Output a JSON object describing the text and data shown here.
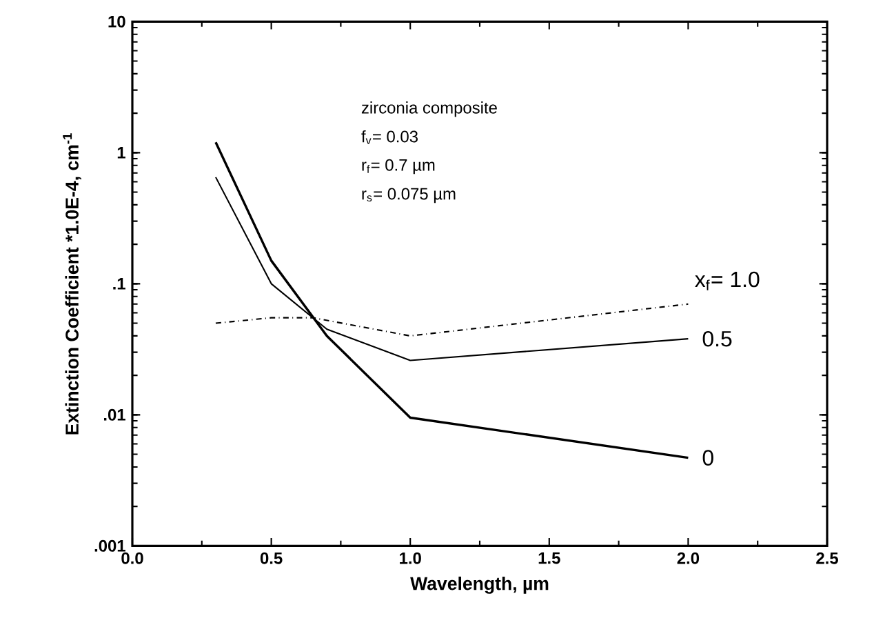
{
  "chart_data": {
    "type": "line",
    "xlabel": "Wavelength, µm",
    "ylabel": "Extinction  Coefficient  *1.0E-4,  cm$^{-1}$",
    "log": "y",
    "xlim": [
      0,
      2.5
    ],
    "ylim": [
      0.001,
      10
    ],
    "xticks": [
      {
        "value": 0,
        "label": "0.0"
      },
      0.5,
      {
        "value": 1,
        "label": "1.0"
      },
      1.5,
      {
        "value": 2,
        "label": "2.0"
      },
      2.5
    ],
    "yticks": [
      {
        "value": 0.001,
        "label": ".001"
      },
      {
        "value": 0.01,
        "label": ".01"
      },
      {
        "value": 0.1,
        "label": ".1"
      },
      1,
      10
    ],
    "grid": false,
    "legend": false,
    "marker": "none",
    "annotations": [
      "zirconia composite",
      "f$_{v}$= 0.03",
      "r$_{f}$= 0.7 µm",
      "r$_{s}$= 0.075 µm"
    ],
    "series": [
      {
        "name": "0",
        "color": "#000000",
        "line_style": "solid",
        "x": [
          0.3,
          0.5,
          0.7,
          1.0,
          2.0
        ],
        "values": [
          1.2,
          0.15,
          0.04,
          0.0095,
          0.0047
        ]
      },
      {
        "name": "0.5",
        "color": "#000000",
        "line_style": "solid",
        "x": [
          0.3,
          0.5,
          0.7,
          1.0,
          2.0
        ],
        "values": [
          0.65,
          0.1,
          0.045,
          0.026,
          0.038
        ]
      },
      {
        "name": "x$_{f}$= 1.0",
        "color": "#000000",
        "line_style": "dashed",
        "x": [
          0.3,
          0.5,
          0.65,
          1.0,
          2.0
        ],
        "values": [
          0.05,
          0.055,
          0.055,
          0.04,
          0.07
        ]
      }
    ]
  }
}
